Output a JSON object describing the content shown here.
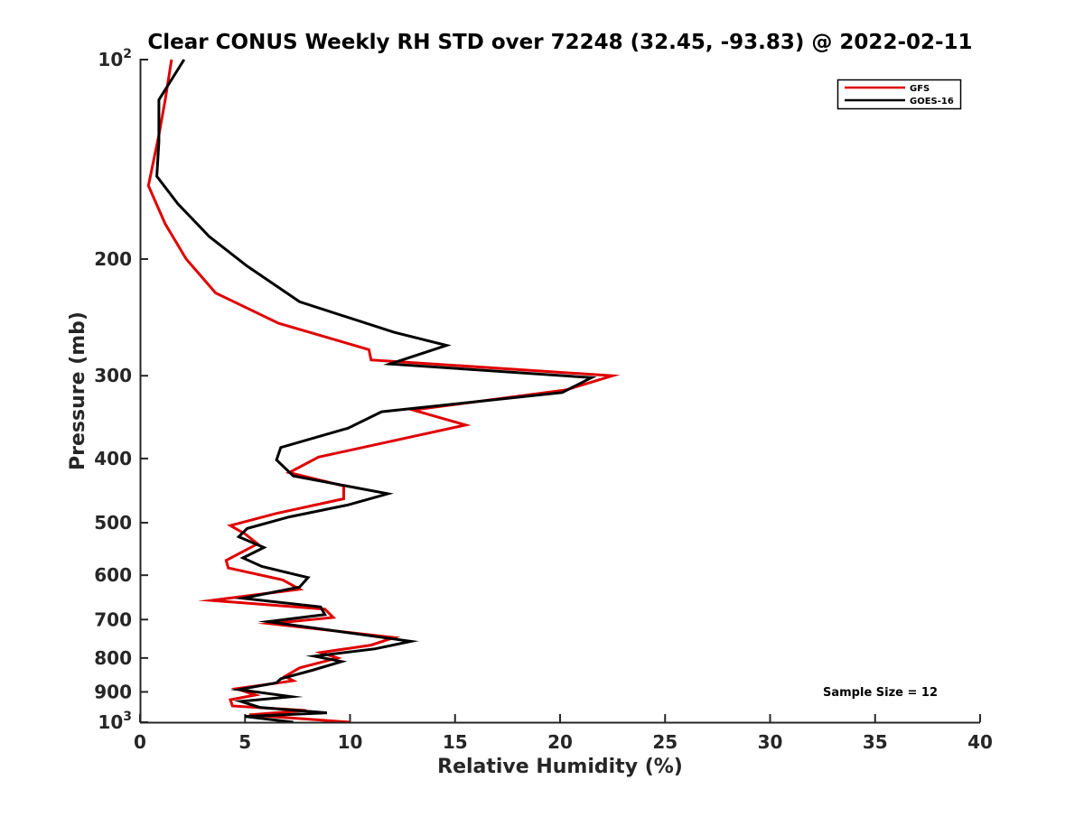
{
  "chart_data": {
    "type": "line",
    "title": "Clear CONUS Weekly RH STD over 72248 (32.45, -93.83) @ 2022-02-11",
    "xlabel": "Relative Humidity (%)",
    "ylabel": "Pressure (mb)",
    "xlim": [
      0,
      40
    ],
    "ylim": [
      100,
      1000
    ],
    "y_scale": "log",
    "y_reversed": true,
    "x_ticks": [
      {
        "value": 0,
        "label": "0"
      },
      {
        "value": 5,
        "label": "5"
      },
      {
        "value": 10,
        "label": "10"
      },
      {
        "value": 15,
        "label": "15"
      },
      {
        "value": 20,
        "label": "20"
      },
      {
        "value": 25,
        "label": "25"
      },
      {
        "value": 30,
        "label": "30"
      },
      {
        "value": 35,
        "label": "35"
      },
      {
        "value": 40,
        "label": "40"
      }
    ],
    "y_ticks": [
      {
        "value": 100,
        "base": "10",
        "exp": "2"
      },
      {
        "value": 200,
        "label": "200"
      },
      {
        "value": 300,
        "label": "300"
      },
      {
        "value": 400,
        "label": "400"
      },
      {
        "value": 500,
        "label": "500"
      },
      {
        "value": 600,
        "label": "600"
      },
      {
        "value": 700,
        "label": "700"
      },
      {
        "value": 800,
        "label": "800"
      },
      {
        "value": 900,
        "label": "900"
      },
      {
        "value": 1000,
        "base": "10",
        "exp": "3"
      }
    ],
    "legend": {
      "position": "top-right"
    },
    "annotation": "Sample Size = 12",
    "series": [
      {
        "name": "GFS",
        "color": "#e00000",
        "points": [
          [
            1.5,
            100
          ],
          [
            1.2,
            115
          ],
          [
            0.9,
            130
          ],
          [
            0.4,
            155
          ],
          [
            1.2,
            177
          ],
          [
            2.2,
            200
          ],
          [
            3.6,
            225
          ],
          [
            6.6,
            250
          ],
          [
            10.9,
            274
          ],
          [
            11.0,
            284
          ],
          [
            22.5,
            300
          ],
          [
            20.3,
            315
          ],
          [
            13.0,
            338
          ],
          [
            15.5,
            356
          ],
          [
            8.5,
            398
          ],
          [
            7.1,
            420
          ],
          [
            9.7,
            440
          ],
          [
            9.7,
            460
          ],
          [
            6.5,
            484
          ],
          [
            4.3,
            505
          ],
          [
            5.0,
            520
          ],
          [
            5.6,
            538
          ],
          [
            4.1,
            570
          ],
          [
            4.2,
            585
          ],
          [
            6.8,
            610
          ],
          [
            7.6,
            630
          ],
          [
            3.4,
            655
          ],
          [
            8.8,
            675
          ],
          [
            9.2,
            695
          ],
          [
            6.2,
            710
          ],
          [
            12.1,
            745
          ],
          [
            11.0,
            765
          ],
          [
            8.6,
            785
          ],
          [
            9.4,
            800
          ],
          [
            7.6,
            828
          ],
          [
            6.9,
            853
          ],
          [
            7.3,
            866
          ],
          [
            4.6,
            890
          ],
          [
            5.5,
            910
          ],
          [
            4.3,
            925
          ],
          [
            4.4,
            945
          ],
          [
            7.9,
            960
          ],
          [
            5.2,
            975
          ],
          [
            10.0,
            1000
          ]
        ]
      },
      {
        "name": "GOES-16",
        "color": "#000000",
        "points": [
          [
            2.1,
            100
          ],
          [
            0.9,
            115
          ],
          [
            0.9,
            133
          ],
          [
            0.8,
            150
          ],
          [
            1.8,
            165
          ],
          [
            3.3,
            185
          ],
          [
            5.1,
            205
          ],
          [
            7.6,
            232
          ],
          [
            12.1,
            258
          ],
          [
            14.6,
            270
          ],
          [
            11.9,
            288
          ],
          [
            21.5,
            302
          ],
          [
            20.1,
            318
          ],
          [
            11.5,
            340
          ],
          [
            9.9,
            360
          ],
          [
            6.7,
            385
          ],
          [
            6.5,
            402
          ],
          [
            7.3,
            425
          ],
          [
            11.8,
            452
          ],
          [
            9.9,
            470
          ],
          [
            7.1,
            490
          ],
          [
            5.1,
            510
          ],
          [
            4.7,
            525
          ],
          [
            5.9,
            545
          ],
          [
            4.9,
            565
          ],
          [
            5.8,
            582
          ],
          [
            8.0,
            605
          ],
          [
            7.6,
            625
          ],
          [
            4.9,
            650
          ],
          [
            8.6,
            670
          ],
          [
            8.8,
            688
          ],
          [
            6.1,
            705
          ],
          [
            12.9,
            755
          ],
          [
            11.2,
            775
          ],
          [
            8.3,
            795
          ],
          [
            9.6,
            810
          ],
          [
            8.2,
            835
          ],
          [
            6.7,
            860
          ],
          [
            6.5,
            872
          ],
          [
            4.7,
            893
          ],
          [
            7.2,
            915
          ],
          [
            4.8,
            930
          ],
          [
            5.7,
            950
          ],
          [
            8.9,
            968
          ],
          [
            5.0,
            980
          ],
          [
            7.3,
            1000
          ]
        ]
      }
    ]
  }
}
